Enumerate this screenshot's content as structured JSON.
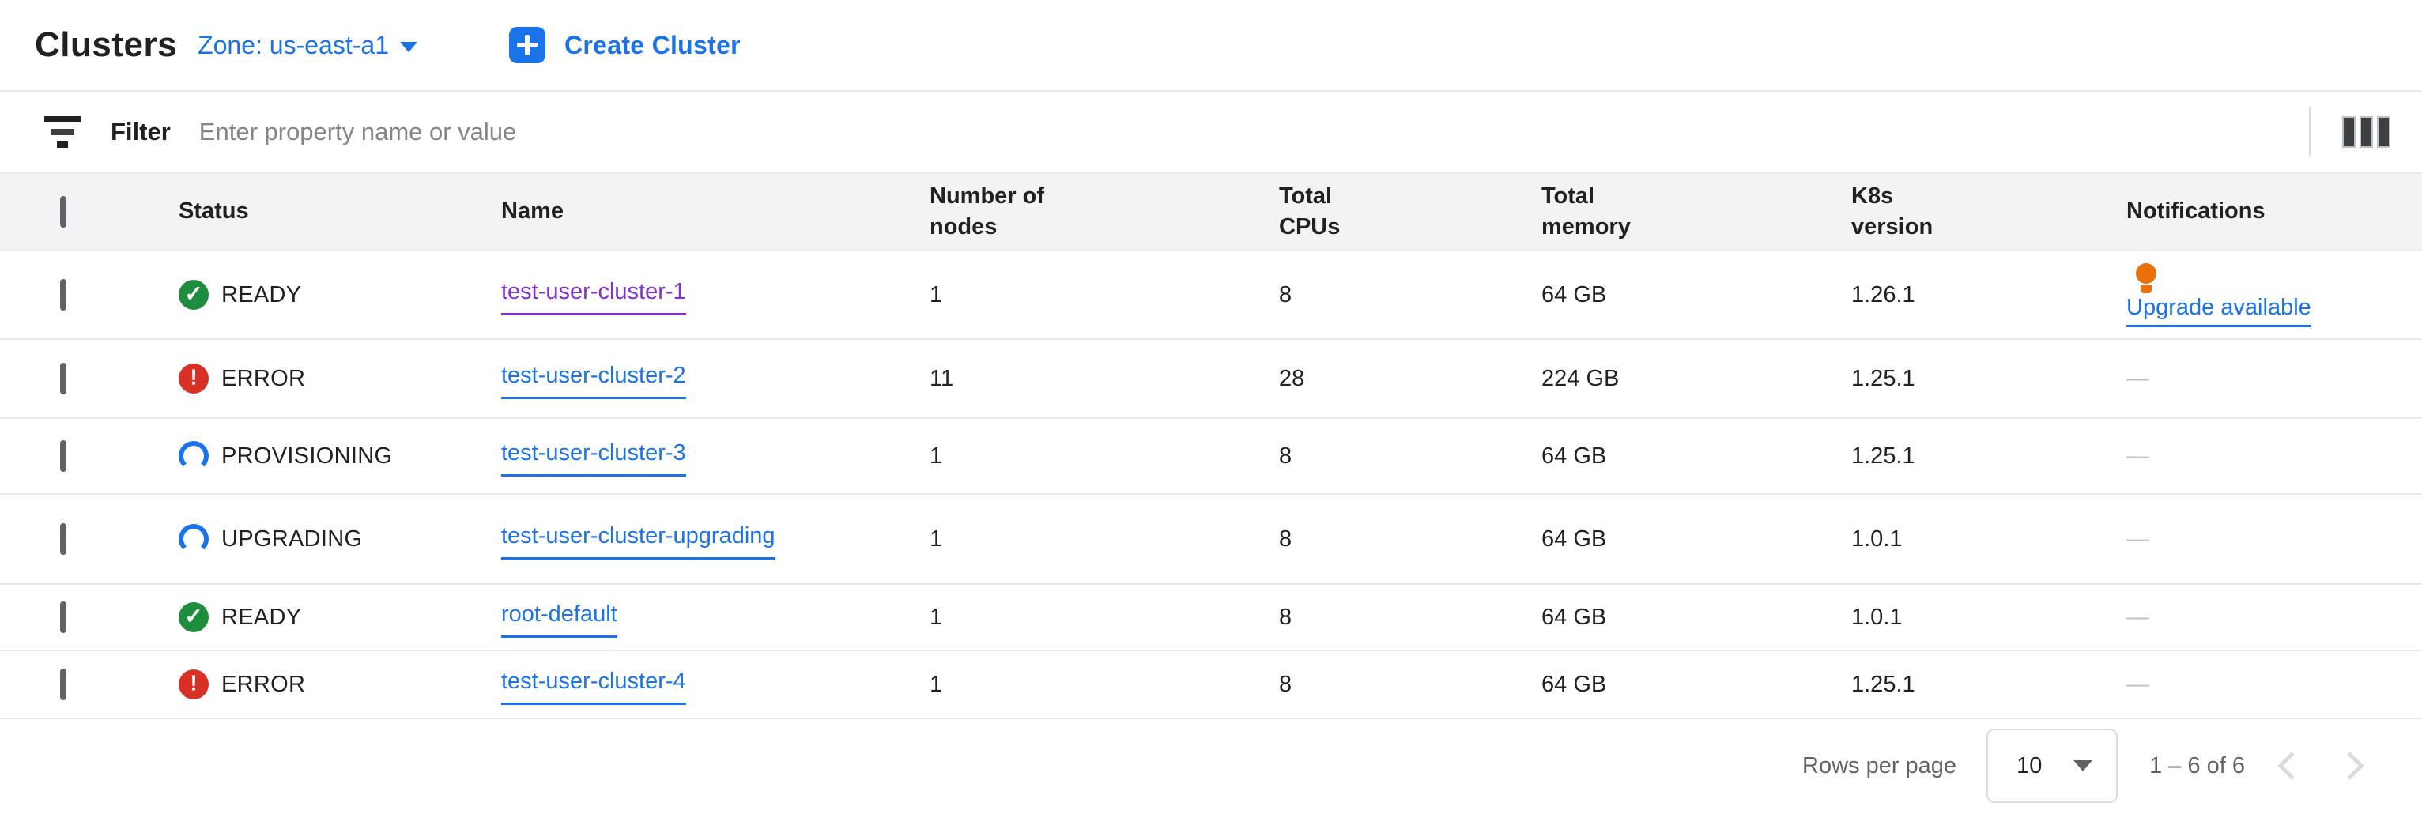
{
  "header": {
    "title": "Clusters",
    "zone_label": "Zone: us-east-a1",
    "create_button": "Create Cluster"
  },
  "filter": {
    "label": "Filter",
    "placeholder": "Enter property name or value"
  },
  "table": {
    "columns": {
      "status": "Status",
      "name": "Name",
      "nodes": "Number of nodes",
      "cpus": "Total CPUs",
      "memory": "Total memory",
      "k8s": "K8s version",
      "notifications": "Notifications"
    },
    "rows": [
      {
        "status": "READY",
        "status_kind": "ready",
        "name": "test-user-cluster-1",
        "nodes": "1",
        "cpus": "8",
        "memory": "64 GB",
        "k8s": "1.26.1",
        "notification": "Upgrade available"
      },
      {
        "status": "ERROR",
        "status_kind": "error",
        "name": "test-user-cluster-2",
        "nodes": "11",
        "cpus": "28",
        "memory": "224 GB",
        "k8s": "1.25.1",
        "notification": "—"
      },
      {
        "status": "PROVISIONING",
        "status_kind": "spinner",
        "name": "test-user-cluster-3",
        "nodes": "1",
        "cpus": "8",
        "memory": "64 GB",
        "k8s": "1.25.1",
        "notification": "—"
      },
      {
        "status": "UPGRADING",
        "status_kind": "spinner",
        "name": "test-user-cluster-upgrading",
        "nodes": "1",
        "cpus": "8",
        "memory": "64 GB",
        "k8s": "1.0.1",
        "notification": "—"
      },
      {
        "status": "READY",
        "status_kind": "ready",
        "name": "root-default",
        "nodes": "1",
        "cpus": "8",
        "memory": "64 GB",
        "k8s": "1.0.1",
        "notification": "—"
      },
      {
        "status": "ERROR",
        "status_kind": "error",
        "name": "test-user-cluster-4",
        "nodes": "1",
        "cpus": "8",
        "memory": "64 GB",
        "k8s": "1.25.1",
        "notification": "—"
      }
    ]
  },
  "pagination": {
    "rows_per_page_label": "Rows per page",
    "rows_per_page_value": "10",
    "range_label": "1 – 6 of 6"
  },
  "colors": {
    "accent_blue": "#1A73E8",
    "visited_purple": "#8430CE",
    "ready_green": "#1E8E3E",
    "error_red": "#D93025",
    "bulb_orange": "#E8710A"
  }
}
